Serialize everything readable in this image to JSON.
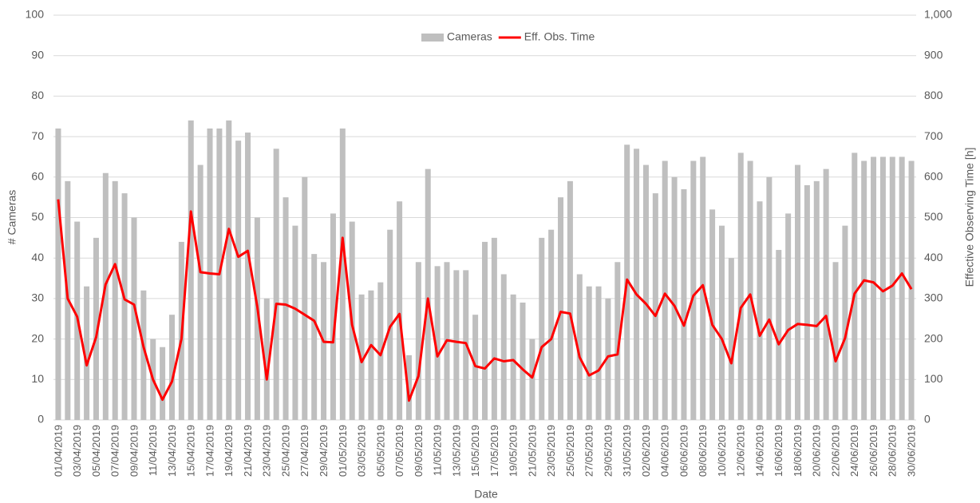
{
  "chart_data": {
    "type": "bar_line",
    "xlabel": "Date",
    "ylabel": "# Cameras",
    "y2label": "Effective Observing Time [h]",
    "categories": [
      "01/04/2019",
      null,
      "03/04/2019",
      null,
      "05/04/2019",
      null,
      "07/04/2019",
      null,
      "09/04/2019",
      null,
      "11/04/2019",
      null,
      "13/04/2019",
      null,
      "15/04/2019",
      null,
      "17/04/2019",
      null,
      "19/04/2019",
      null,
      "21/04/2019",
      null,
      "23/04/2019",
      null,
      "25/04/2019",
      null,
      "27/04/2019",
      null,
      "29/04/2019",
      null,
      "01/05/2019",
      null,
      "03/05/2019",
      null,
      "05/05/2019",
      null,
      "07/05/2019",
      null,
      "09/05/2019",
      null,
      "11/05/2019",
      null,
      "13/05/2019",
      null,
      "15/05/2019",
      null,
      "17/05/2019",
      null,
      "19/05/2019",
      null,
      "21/05/2019",
      null,
      "23/05/2019",
      null,
      "25/05/2019",
      null,
      "27/05/2019",
      null,
      "29/05/2019",
      null,
      "31/05/2019",
      null,
      "02/06/2019",
      null,
      "04/06/2019",
      null,
      "06/06/2019",
      null,
      "08/06/2019",
      null,
      "10/06/2019",
      null,
      "12/06/2019",
      null,
      "14/06/2019",
      null,
      "16/06/2019",
      null,
      "18/06/2019",
      null,
      "20/06/2019",
      null,
      "22/06/2019",
      null,
      "24/06/2019",
      null,
      "26/06/2019",
      null,
      "28/06/2019",
      null,
      "30/06/2019"
    ],
    "series": [
      {
        "name": "Cameras",
        "color": "#bfbfbf",
        "axis": "y",
        "values": [
          72,
          59,
          49,
          33,
          45,
          61,
          59,
          56,
          50,
          32,
          20,
          18,
          26,
          44,
          74,
          63,
          72,
          72,
          74,
          69,
          71,
          50,
          30,
          67,
          55,
          48,
          60,
          41,
          39,
          51,
          72,
          49,
          31,
          32,
          34,
          47,
          54,
          16,
          39,
          62,
          38,
          39,
          37,
          37,
          26,
          44,
          45,
          36,
          31,
          29,
          20,
          45,
          47,
          55,
          59,
          36,
          33,
          33,
          30,
          39,
          68,
          67,
          63,
          56,
          64,
          60,
          57,
          64,
          65,
          52,
          48,
          40,
          66,
          64,
          54,
          60,
          42,
          51,
          63,
          58,
          59,
          62,
          39,
          48,
          66,
          64,
          65,
          65,
          65,
          65,
          64
        ]
      },
      {
        "name": "Eff. Obs. Time",
        "color": "#ff0000",
        "axis": "y2",
        "values": [
          545,
          300,
          255,
          135,
          205,
          335,
          385,
          298,
          285,
          180,
          100,
          50,
          95,
          200,
          515,
          365,
          362,
          360,
          472,
          403,
          418,
          280,
          100,
          287,
          285,
          275,
          260,
          245,
          193,
          192,
          450,
          235,
          143,
          185,
          160,
          230,
          262,
          48,
          108,
          300,
          157,
          197,
          193,
          190,
          133,
          127,
          152,
          145,
          148,
          125,
          105,
          180,
          200,
          267,
          263,
          155,
          110,
          122,
          157,
          162,
          347,
          310,
          287,
          257,
          312,
          282,
          233,
          307,
          333,
          235,
          200,
          140,
          277,
          310,
          208,
          248,
          187,
          222,
          237,
          235,
          232,
          257,
          145,
          202,
          312,
          345,
          340,
          318,
          332,
          362,
          323
        ]
      }
    ],
    "ylim": [
      0,
      100
    ],
    "yticks": [
      0,
      10,
      20,
      30,
      40,
      50,
      60,
      70,
      80,
      90,
      100
    ],
    "y2lim": [
      0,
      1000
    ],
    "y2ticks": [
      0,
      100,
      200,
      300,
      400,
      500,
      600,
      700,
      800,
      900,
      {
        "value": 1000,
        "label": "1,000"
      }
    ],
    "grid": true,
    "legend": "top"
  }
}
